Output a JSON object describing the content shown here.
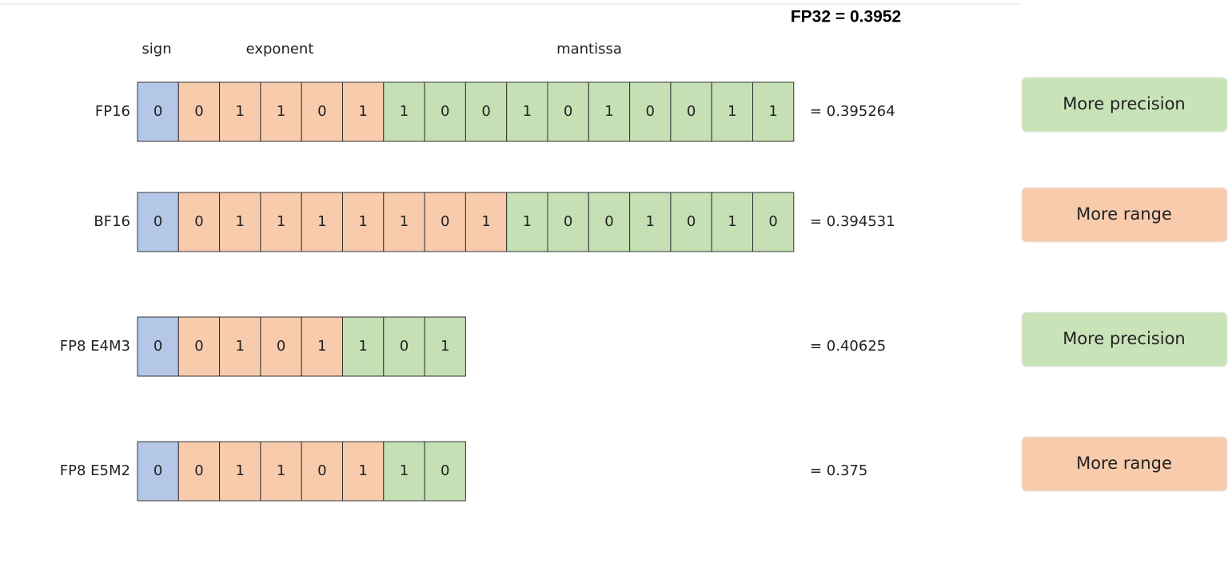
{
  "title": "FP32 = 0.3952",
  "headers": {
    "sign": "sign",
    "exponent": "exponent",
    "mantissa": "mantissa"
  },
  "rows": [
    {
      "label": "FP16",
      "sign": [
        "0"
      ],
      "exponent": [
        "0",
        "1",
        "1",
        "0",
        "1"
      ],
      "mantissa": [
        "1",
        "0",
        "0",
        "1",
        "0",
        "1",
        "0",
        "0",
        "1",
        "1"
      ],
      "value": "= 0.395264",
      "badge": {
        "text": "More precision",
        "color": "#c9e3b9"
      }
    },
    {
      "label": "BF16",
      "sign": [
        "0"
      ],
      "exponent": [
        "0",
        "1",
        "1",
        "1",
        "1",
        "1",
        "0",
        "1"
      ],
      "mantissa": [
        "1",
        "0",
        "0",
        "1",
        "0",
        "1",
        "0"
      ],
      "value": "= 0.394531",
      "badge": {
        "text": "More range",
        "color": "#f8cbad"
      }
    },
    {
      "label": "FP8 E4M3",
      "sign": [
        "0"
      ],
      "exponent": [
        "0",
        "1",
        "0",
        "1"
      ],
      "mantissa": [
        "1",
        "0",
        "1"
      ],
      "value": "= 0.40625",
      "badge": {
        "text": "More precision",
        "color": "#c9e3b9"
      }
    },
    {
      "label": "FP8 E5M2",
      "sign": [
        "0"
      ],
      "exponent": [
        "0",
        "1",
        "1",
        "0",
        "1"
      ],
      "mantissa": [
        "1",
        "0"
      ],
      "value": "= 0.375",
      "badge": {
        "text": "More range",
        "color": "#f8cbad"
      }
    }
  ]
}
